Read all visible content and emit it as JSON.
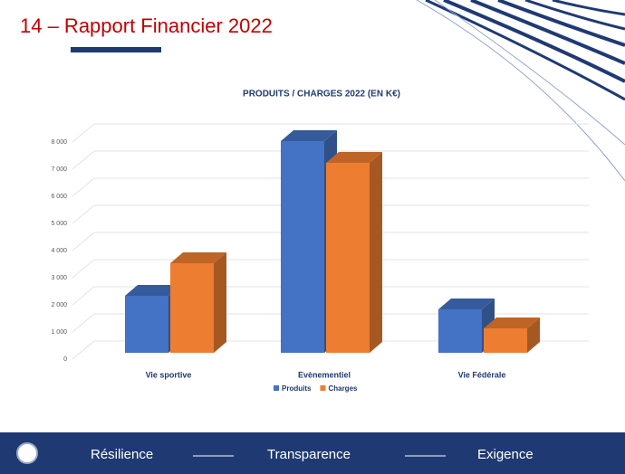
{
  "slide": {
    "title": "14 – Rapport Financier 2022",
    "footer": [
      "Résilience",
      "Transparence",
      "Exigence"
    ]
  },
  "chart_data": {
    "type": "bar3d",
    "title": "PRODUITS / CHARGES 2022 (EN K€)",
    "categories": [
      "Vie sportive",
      "Evènementiel",
      "Vie Fédérale"
    ],
    "series": [
      {
        "name": "Produits",
        "color": "#4472c4",
        "values": [
          2100,
          7800,
          1600
        ]
      },
      {
        "name": "Charges",
        "color": "#ed7d31",
        "values": [
          3300,
          7000,
          900
        ]
      }
    ],
    "ylim": [
      0,
      8000
    ],
    "yticks": [
      0,
      {
        "value": 1000,
        "label": "1 000"
      },
      {
        "value": 2000,
        "label": "2 000"
      },
      {
        "value": 3000,
        "label": "3 000"
      },
      {
        "value": 4000,
        "label": "4 000"
      },
      {
        "value": 5000,
        "label": "5 000"
      },
      {
        "value": 6000,
        "label": "6 000"
      },
      {
        "value": 7000,
        "label": "7 000"
      },
      {
        "value": 8000,
        "label": "8 000"
      }
    ],
    "grid": true,
    "legend": "bottom"
  }
}
